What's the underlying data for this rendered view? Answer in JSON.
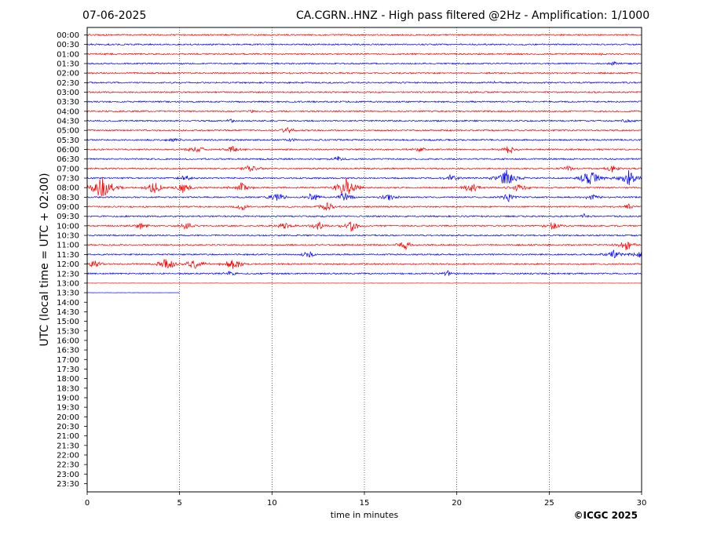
{
  "header": {
    "date": "07-06-2025",
    "title": "CA.CGRN..HNZ - High pass filtered @2Hz - Amplification: 1/1000"
  },
  "footer": {
    "copyright": "©ICGC 2025"
  },
  "colors": {
    "trace_a": "#ff0000",
    "trace_b": "#0000ff",
    "grid": "#000000",
    "background": "#ffffff"
  },
  "chart_data": {
    "type": "line",
    "title": "CA.CGRN..HNZ - High pass filtered @2Hz - Amplification: 1/1000",
    "xlabel": "time in minutes",
    "ylabel": "UTC (local time = UTC + 02:00)",
    "xlim": [
      0,
      30
    ],
    "xticks": [
      "0",
      "5",
      "10",
      "15",
      "20",
      "25",
      "30"
    ],
    "grid": "vertical dotted lines at 5-minute intervals",
    "rows": [
      "00:00",
      "00:30",
      "01:00",
      "01:30",
      "02:00",
      "02:30",
      "03:00",
      "03:30",
      "04:00",
      "04:30",
      "05:00",
      "05:30",
      "06:00",
      "06:30",
      "07:00",
      "07:30",
      "08:00",
      "08:30",
      "09:00",
      "09:30",
      "10:00",
      "10:30",
      "11:00",
      "11:30",
      "12:00",
      "12:30",
      "13:00",
      "13:30",
      "14:00",
      "14:30",
      "15:00",
      "15:30",
      "16:00",
      "16:30",
      "17:00",
      "17:30",
      "18:00",
      "18:30",
      "19:00",
      "19:30",
      "20:00",
      "20:30",
      "21:00",
      "21:30",
      "22:00",
      "22:30",
      "23:00",
      "23:30"
    ],
    "row_colors": "alternating red (even rows) and blue (odd rows)",
    "last_row_end_minute": 5,
    "events": [
      {
        "row": "01:00",
        "minute": 28.0,
        "amp": 0.15
      },
      {
        "row": "01:30",
        "minute": 28.5,
        "amp": 0.25
      },
      {
        "row": "02:30",
        "minute": 21.9,
        "amp": 0.25
      },
      {
        "row": "03:00",
        "minute": 16.0,
        "amp": 0.1
      },
      {
        "row": "04:00",
        "minute": 9.0,
        "amp": 0.15
      },
      {
        "row": "04:30",
        "minute": 7.8,
        "amp": 0.2
      },
      {
        "row": "04:30",
        "minute": 29.2,
        "amp": 0.2
      },
      {
        "row": "05:00",
        "minute": 10.8,
        "amp": 0.35
      },
      {
        "row": "05:30",
        "minute": 4.7,
        "amp": 0.3
      },
      {
        "row": "05:30",
        "minute": 11.1,
        "amp": 0.2
      },
      {
        "row": "06:00",
        "minute": 5.9,
        "amp": 0.5
      },
      {
        "row": "06:00",
        "minute": 7.9,
        "amp": 0.45
      },
      {
        "row": "06:00",
        "minute": 18.0,
        "amp": 0.3
      },
      {
        "row": "06:00",
        "minute": 22.8,
        "amp": 0.5
      },
      {
        "row": "06:30",
        "minute": 13.6,
        "amp": 0.3
      },
      {
        "row": "07:00",
        "minute": 8.9,
        "amp": 0.5
      },
      {
        "row": "07:00",
        "minute": 26.0,
        "amp": 0.35
      },
      {
        "row": "07:00",
        "minute": 28.4,
        "amp": 0.4
      },
      {
        "row": "07:30",
        "minute": 5.3,
        "amp": 0.4
      },
      {
        "row": "07:30",
        "minute": 19.7,
        "amp": 0.4
      },
      {
        "row": "07:30",
        "minute": 22.7,
        "amp": 0.9
      },
      {
        "row": "07:30",
        "minute": 27.2,
        "amp": 0.9
      },
      {
        "row": "07:30",
        "minute": 29.3,
        "amp": 0.9
      },
      {
        "row": "08:00",
        "minute": 0.8,
        "amp": 1.2
      },
      {
        "row": "08:00",
        "minute": 3.6,
        "amp": 0.7
      },
      {
        "row": "08:00",
        "minute": 5.2,
        "amp": 0.6
      },
      {
        "row": "08:00",
        "minute": 8.3,
        "amp": 0.6
      },
      {
        "row": "08:00",
        "minute": 14.0,
        "amp": 1.0
      },
      {
        "row": "08:00",
        "minute": 20.8,
        "amp": 0.6
      },
      {
        "row": "08:00",
        "minute": 23.3,
        "amp": 0.5
      },
      {
        "row": "08:30",
        "minute": 10.3,
        "amp": 0.5
      },
      {
        "row": "08:30",
        "minute": 12.2,
        "amp": 0.5
      },
      {
        "row": "08:30",
        "minute": 13.9,
        "amp": 0.6
      },
      {
        "row": "08:30",
        "minute": 16.3,
        "amp": 0.5
      },
      {
        "row": "08:30",
        "minute": 22.8,
        "amp": 0.5
      },
      {
        "row": "08:30",
        "minute": 27.3,
        "amp": 0.4
      },
      {
        "row": "09:00",
        "minute": 8.4,
        "amp": 0.4
      },
      {
        "row": "09:00",
        "minute": 13.0,
        "amp": 0.5
      },
      {
        "row": "09:00",
        "minute": 29.3,
        "amp": 0.3
      },
      {
        "row": "09:30",
        "minute": 26.9,
        "amp": 0.25
      },
      {
        "row": "10:00",
        "minute": 2.8,
        "amp": 0.45
      },
      {
        "row": "10:00",
        "minute": 5.4,
        "amp": 0.45
      },
      {
        "row": "10:00",
        "minute": 10.7,
        "amp": 0.45
      },
      {
        "row": "10:00",
        "minute": 12.5,
        "amp": 0.5
      },
      {
        "row": "10:00",
        "minute": 14.3,
        "amp": 0.6
      },
      {
        "row": "10:00",
        "minute": 25.2,
        "amp": 0.5
      },
      {
        "row": "11:00",
        "minute": 17.2,
        "amp": 0.5
      },
      {
        "row": "11:00",
        "minute": 29.2,
        "amp": 0.6
      },
      {
        "row": "11:30",
        "minute": 12.0,
        "amp": 0.4
      },
      {
        "row": "11:30",
        "minute": 28.5,
        "amp": 0.5
      },
      {
        "row": "11:30",
        "minute": 29.8,
        "amp": 0.5
      },
      {
        "row": "12:00",
        "minute": 0.4,
        "amp": 0.5
      },
      {
        "row": "12:00",
        "minute": 4.3,
        "amp": 0.7
      },
      {
        "row": "12:00",
        "minute": 5.8,
        "amp": 0.6
      },
      {
        "row": "12:00",
        "minute": 7.9,
        "amp": 0.7
      },
      {
        "row": "12:30",
        "minute": 7.7,
        "amp": 0.25
      },
      {
        "row": "12:30",
        "minute": 19.5,
        "amp": 0.3
      }
    ]
  }
}
